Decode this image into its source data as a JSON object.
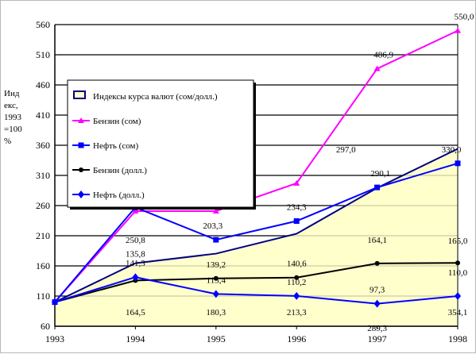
{
  "chart_data": {
    "type": "line",
    "ylabel_lines": [
      "Инд",
      "екс,",
      "1993",
      "=100",
      "%"
    ],
    "x": [
      "1993",
      "1994",
      "1995",
      "1996",
      "1997",
      "1998"
    ],
    "yticks": [
      60,
      110,
      160,
      210,
      260,
      310,
      360,
      410,
      460,
      510,
      560
    ],
    "ylim": [
      60,
      560
    ],
    "grid": true,
    "legend_position": "upper-left",
    "series": [
      {
        "name": "Индексы курса валют (сом/долл.)",
        "kind": "area",
        "color": "#000080",
        "fill": "#ffffcc",
        "values": [
          100,
          164.5,
          180.3,
          213.3,
          289.3,
          354.1
        ],
        "labels": [
          "",
          "164,5",
          "180,3",
          "213,3",
          "289,3",
          "354,1"
        ]
      },
      {
        "name": "Бензин (сом)",
        "kind": "line",
        "color": "#ff00ff",
        "marker": "triangle",
        "values": [
          100,
          250.8,
          250.8,
          297.0,
          486.9,
          550.0
        ],
        "labels": [
          "",
          "250,8",
          "",
          "297,0",
          "486,9",
          "550,0"
        ]
      },
      {
        "name": "Нефть (сом)",
        "kind": "line",
        "color": "#0000ff",
        "marker": "square",
        "values": [
          100,
          257,
          203.3,
          234.3,
          290.1,
          330.0
        ],
        "labels": [
          "",
          "",
          "203,3",
          "234,3",
          "290,1",
          "330,0"
        ]
      },
      {
        "name": "Бензин (долл.)",
        "kind": "line",
        "color": "#000000",
        "marker": "dot",
        "values": [
          100,
          135.8,
          139.2,
          140.6,
          164.1,
          165.0
        ],
        "labels": [
          "",
          "135,8",
          "139,2",
          "140,6",
          "164,1",
          "165,0"
        ]
      },
      {
        "name": "Нефть (долл.)",
        "kind": "line",
        "color": "#0000ff",
        "marker": "diamond",
        "values": [
          100,
          141.3,
          113.4,
          110.2,
          97.3,
          110.0
        ],
        "labels": [
          "",
          "141,3",
          "113,4",
          "110,2",
          "97,3",
          "110,0"
        ]
      }
    ]
  }
}
